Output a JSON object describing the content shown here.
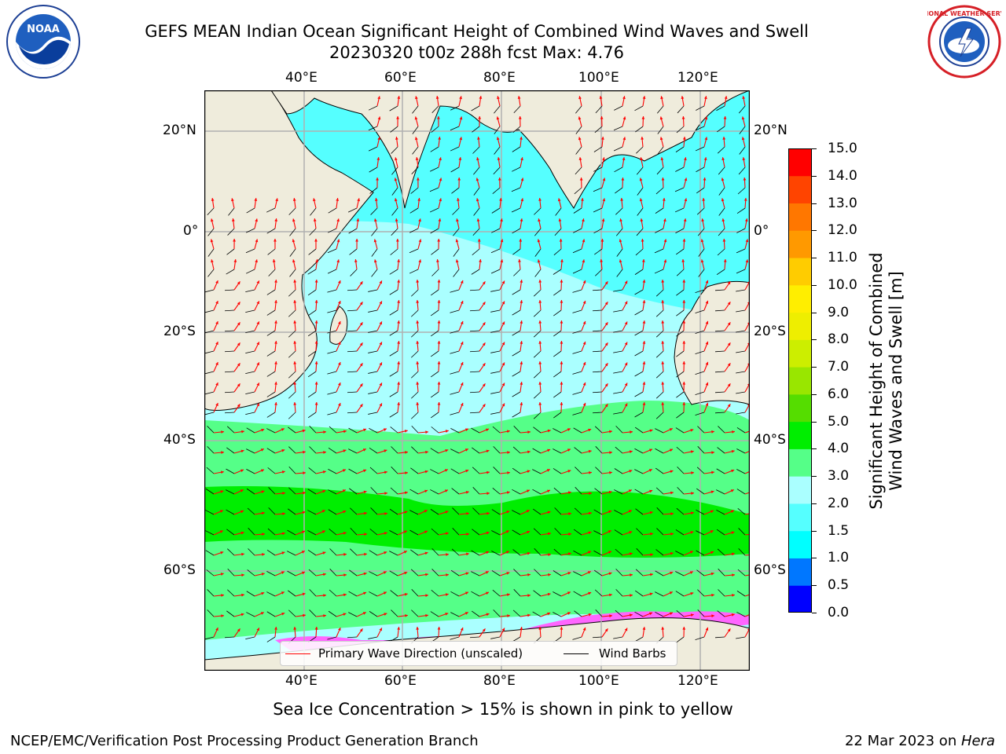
{
  "title": {
    "line1": "GEFS MEAN Indian Ocean Significant Height of Combined Wind Waves and Swell",
    "line2": "20230320 t00z 288h fcst   Max: 4.76"
  },
  "logos": {
    "left": {
      "icon": "noaa-logo",
      "text": "NOAA"
    },
    "right": {
      "icon": "nws-logo",
      "text": "NATIONAL WEATHER SERVICE"
    }
  },
  "axes": {
    "lon_ticks_top": [
      "40°E",
      "60°E",
      "80°E",
      "100°E",
      "120°E"
    ],
    "lon_ticks_bottom": [
      "40°E",
      "60°E",
      "80°E",
      "100°E",
      "120°E"
    ],
    "lat_ticks_left": [
      "20°N",
      "0°",
      "20°S",
      "40°S",
      "60°S"
    ],
    "lat_ticks_right": [
      "20°N",
      "0°",
      "20°S",
      "40°S",
      "60°S"
    ]
  },
  "colorbar": {
    "label": "Significant Height of Combined Wind Waves and Swell [m]",
    "ticks": [
      "0.0",
      "0.5",
      "1.0",
      "1.5",
      "2.0",
      "3.0",
      "4.0",
      "5.0",
      "6.0",
      "7.0",
      "8.0",
      "9.0",
      "10.0",
      "11.0",
      "12.0",
      "13.0",
      "14.0",
      "15.0"
    ],
    "colors": [
      "#0000ff",
      "#0077ff",
      "#00ffff",
      "#55ffff",
      "#aaffff",
      "#55ff88",
      "#00ee00",
      "#55dd00",
      "#99e600",
      "#ccee00",
      "#eeee00",
      "#ffee00",
      "#ffcc00",
      "#ff9900",
      "#ff7700",
      "#ff4400",
      "#ff0000"
    ]
  },
  "legend": {
    "wave_direction": "Primary Wave Direction (unscaled)",
    "wind_barbs": "Wind Barbs",
    "wave_color": "#ff0000",
    "barb_color": "#000000"
  },
  "note": "Sea Ice Concentration > 15% is shown in pink to yellow",
  "footer": {
    "left": "NCEP/EMC/Verification Post Processing Product Generation Branch",
    "right_date": "22 Mar 2023 on ",
    "right_host": "Hera"
  },
  "map_colors": {
    "land": "#efecdc",
    "calm": "#aaffff",
    "moderate": "#55ffff",
    "shelf": "#00e5ff",
    "coastal": "#0077ff",
    "southern": "#55ff88",
    "storm": "#00ee00",
    "ice": "#ff66ff"
  }
}
